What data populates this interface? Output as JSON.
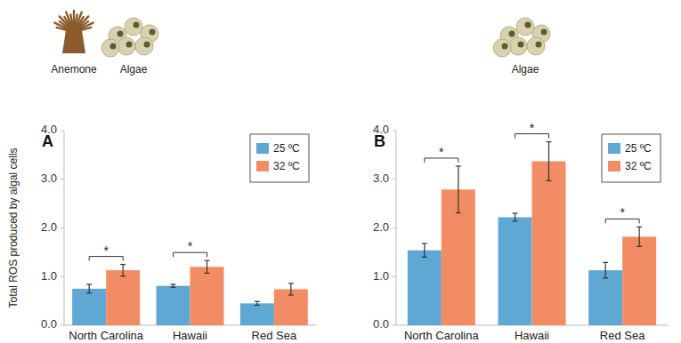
{
  "chart_data": [
    {
      "type": "bar",
      "panel": "A",
      "icons": [
        "Anemone",
        "Algae"
      ],
      "ylabel": "Total ROS produced by algal cells",
      "categories": [
        "North Carolina",
        "Hawaii",
        "Red Sea"
      ],
      "series": [
        {
          "name": "25 ºC",
          "color": "#5fa8d3",
          "values": [
            0.75,
            0.81,
            0.45
          ],
          "errors": [
            0.09,
            0.03,
            0.04
          ]
        },
        {
          "name": "32 ºC",
          "color": "#f28c64",
          "values": [
            1.13,
            1.2,
            0.74
          ],
          "errors": [
            0.12,
            0.13,
            0.12
          ]
        }
      ],
      "significance": [
        "*",
        "*",
        null
      ],
      "ylim": [
        0,
        4
      ],
      "yticks": [
        {
          "value": 0,
          "label": "0.0"
        },
        {
          "value": 1,
          "label": "1.0"
        },
        {
          "value": 2,
          "label": "2.0"
        },
        {
          "value": 3,
          "label": "3.0"
        },
        {
          "value": 4,
          "label": "4.0"
        }
      ],
      "grid": false,
      "legend": "upper right"
    },
    {
      "type": "bar",
      "panel": "B",
      "icons": [
        "Algae"
      ],
      "categories": [
        "North Carolina",
        "Hawaii",
        "Red Sea"
      ],
      "series": [
        {
          "name": "25 ºC",
          "color": "#5fa8d3",
          "values": [
            1.54,
            2.22,
            1.13
          ],
          "errors": [
            0.14,
            0.08,
            0.16
          ]
        },
        {
          "name": "32 ºC",
          "color": "#f28c64",
          "values": [
            2.79,
            3.37,
            1.82
          ],
          "errors": [
            0.48,
            0.4,
            0.2
          ]
        }
      ],
      "significance": [
        "*",
        "*",
        "*"
      ],
      "ylim": [
        0,
        4
      ],
      "yticks": [
        {
          "value": 0,
          "label": "0.0"
        },
        {
          "value": 1,
          "label": "1.0"
        },
        {
          "value": 2,
          "label": "2.0"
        },
        {
          "value": 3,
          "label": "3.0"
        },
        {
          "value": 4,
          "label": "4.0"
        }
      ],
      "grid": false,
      "legend": "upper right"
    }
  ]
}
